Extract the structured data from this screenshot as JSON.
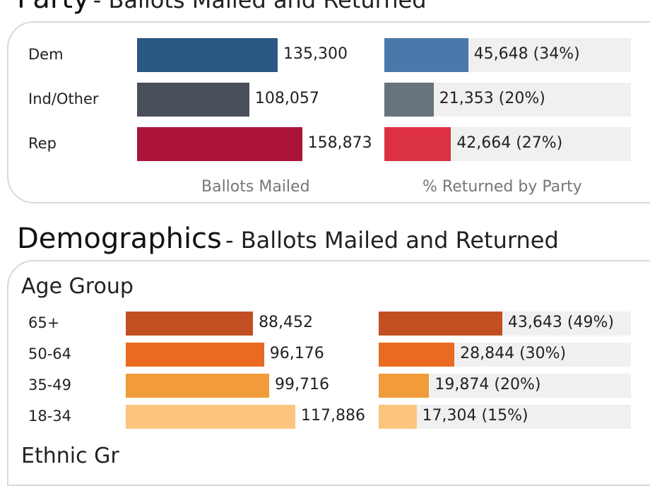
{
  "party": {
    "title": "Party",
    "subtitle": "Ballots Mailed and Returned",
    "axis_mailed": "Ballots Mailed",
    "axis_returned": "% Returned by Party"
  },
  "demographics": {
    "title": "Demographics",
    "subtitle": "Ballots Mailed and Returned",
    "age_group_label": "Age Group",
    "ethnic_label": "Ethnic Gr"
  },
  "chart_data": [
    {
      "type": "bar",
      "title": "Party",
      "categories": [
        "Dem",
        "Ind/Other",
        "Rep"
      ],
      "series": [
        {
          "name": "Ballots Mailed",
          "values": [
            135300,
            108057,
            158873
          ],
          "labels": [
            "135,300",
            "108,057",
            "158,873"
          ],
          "colors": [
            "#2a5783",
            "#4a4f5c",
            "#ac1339"
          ]
        },
        {
          "name": "% Returned by Party",
          "values": [
            45648,
            21353,
            42664
          ],
          "percent": [
            34,
            20,
            27
          ],
          "labels": [
            "45,648 (34%)",
            "21,353 (20%)",
            "42,664 (27%)"
          ],
          "colors": [
            "#4a78aa",
            "#67737d",
            "#dc3140"
          ]
        }
      ],
      "background_track_color": "#f0f0f0"
    },
    {
      "type": "bar",
      "title": "Age Group",
      "categories": [
        "65+",
        "50-64",
        "35-49",
        "18-34"
      ],
      "series": [
        {
          "name": "Ballots Mailed",
          "values": [
            88452,
            96176,
            99716,
            117886
          ],
          "labels": [
            "88,452",
            "96,176",
            "99,716",
            "117,886"
          ],
          "colors": [
            "#c24f22",
            "#e86b21",
            "#f19b3a",
            "#fcc57f"
          ]
        },
        {
          "name": "% Returned by Party",
          "values": [
            43643,
            28844,
            19874,
            17304
          ],
          "percent": [
            49,
            30,
            20,
            15
          ],
          "labels": [
            "43,643 (49%)",
            "28,844 (30%)",
            "19,874 (20%)",
            "17,304 (15%)"
          ],
          "colors": [
            "#c24f22",
            "#e86b21",
            "#f19b3a",
            "#fcc57f"
          ]
        }
      ],
      "background_track_color": "#f0f0f0"
    }
  ]
}
